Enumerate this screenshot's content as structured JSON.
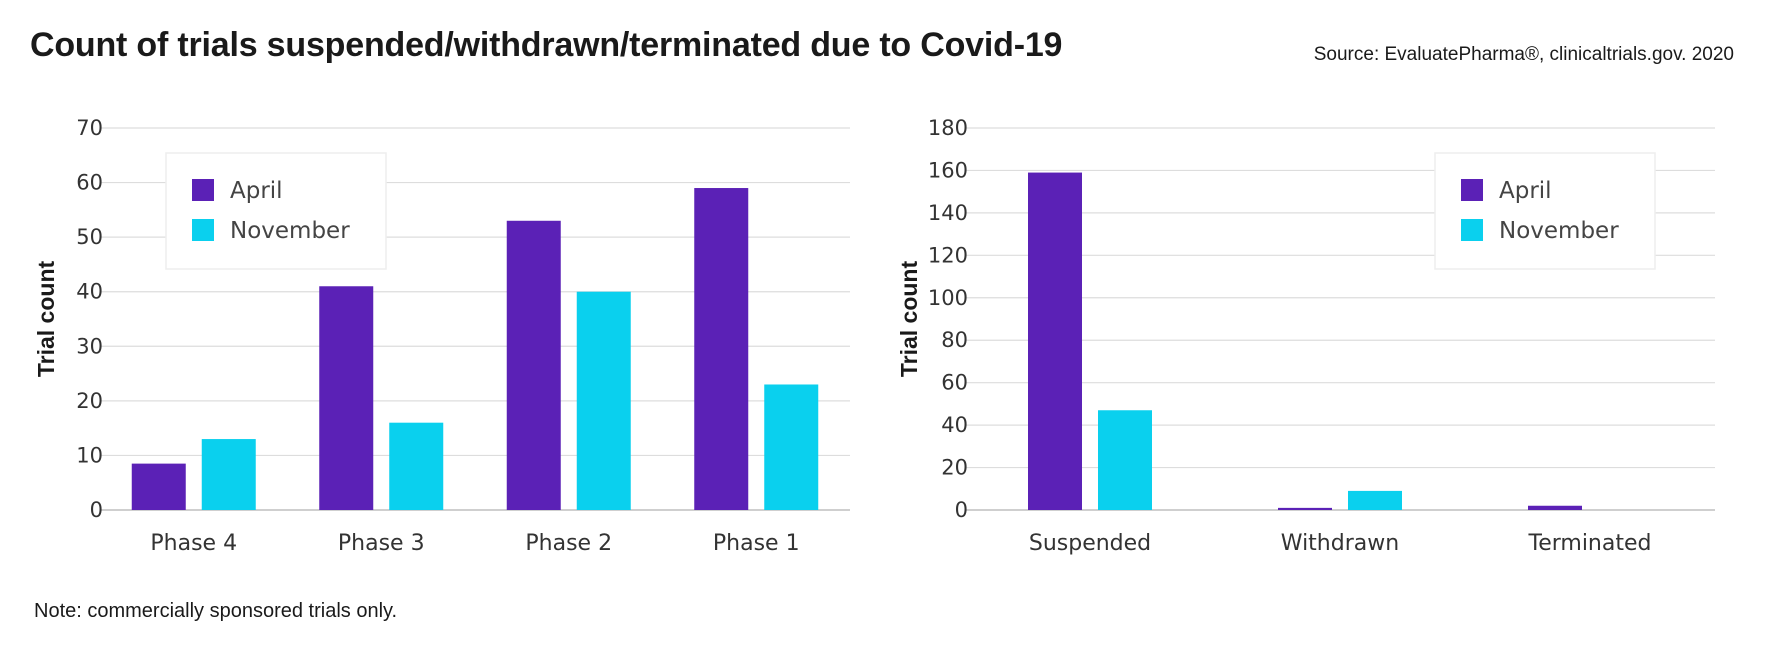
{
  "header": {
    "title": "Count of trials suspended/withdrawn/terminated due to Covid-19",
    "source": "Source: EvaluatePharma®, clinicaltrials.gov. 2020"
  },
  "footer": {
    "note": "Note: commercially sponsored trials only."
  },
  "colors": {
    "april": "#5b21b6",
    "november": "#0ad0ee",
    "grid": "#dddddd",
    "axis": "#cfcfcf"
  },
  "chart_data": [
    {
      "type": "bar",
      "categories": [
        "Phase 4",
        "Phase 3",
        "Phase 2",
        "Phase 1"
      ],
      "series": [
        {
          "name": "April",
          "values": [
            8.5,
            41,
            53,
            59
          ]
        },
        {
          "name": "November",
          "values": [
            13,
            16,
            40,
            23
          ]
        }
      ],
      "ylabel": "Trial count",
      "ylim": [
        0,
        70
      ],
      "yticks": [
        0,
        10,
        20,
        30,
        40,
        50,
        60,
        70
      ],
      "grid": true,
      "legend": "top-left"
    },
    {
      "type": "bar",
      "categories": [
        "Suspended",
        "Withdrawn",
        "Terminated"
      ],
      "series": [
        {
          "name": "April",
          "values": [
            159,
            1,
            2
          ]
        },
        {
          "name": "November",
          "values": [
            47,
            9,
            0
          ]
        }
      ],
      "ylabel": "Trial count",
      "ylim": [
        0,
        180
      ],
      "yticks": [
        0,
        20,
        40,
        60,
        80,
        100,
        120,
        140,
        160,
        180
      ],
      "grid": true,
      "legend": "top-right"
    }
  ]
}
